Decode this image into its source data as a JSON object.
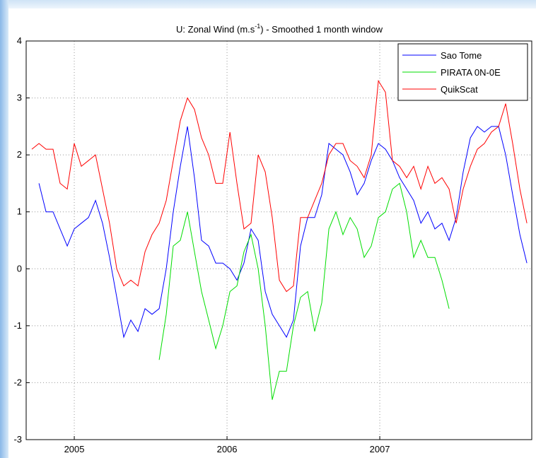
{
  "chart_data": {
    "type": "line",
    "title_parts": [
      "U: Zonal Wind (m.s",
      "-1",
      ") - Smoothed 1 month window"
    ],
    "x": [
      2004.722,
      2004.769,
      2004.815,
      2004.861,
      2004.907,
      2004.954,
      2005.0,
      2005.046,
      2005.093,
      2005.139,
      2005.185,
      2005.231,
      2005.278,
      2005.324,
      2005.37,
      2005.417,
      2005.463,
      2005.509,
      2005.556,
      2005.602,
      2005.648,
      2005.694,
      2005.741,
      2005.787,
      2005.833,
      2005.88,
      2005.926,
      2005.972,
      2006.019,
      2006.065,
      2006.111,
      2006.157,
      2006.204,
      2006.25,
      2006.296,
      2006.343,
      2006.389,
      2006.435,
      2006.481,
      2006.528,
      2006.574,
      2006.62,
      2006.667,
      2006.713,
      2006.759,
      2006.806,
      2006.852,
      2006.898,
      2006.944,
      2006.991,
      2007.037,
      2007.083,
      2007.13,
      2007.176,
      2007.222,
      2007.269,
      2007.315,
      2007.361,
      2007.407,
      2007.454,
      2007.5,
      2007.546,
      2007.593,
      2007.639,
      2007.685,
      2007.731,
      2007.778,
      2007.824,
      2007.87,
      2007.917,
      2007.963
    ],
    "series": [
      {
        "name": "Sao Tome",
        "color": "#0000ff",
        "values": [
          null,
          1.5,
          1.0,
          1.0,
          0.7,
          0.4,
          0.7,
          0.8,
          0.9,
          1.2,
          0.8,
          0.2,
          -0.5,
          -1.2,
          -0.9,
          -1.1,
          -0.7,
          -0.8,
          -0.7,
          0.0,
          1.0,
          1.8,
          2.5,
          1.6,
          0.5,
          0.4,
          0.1,
          0.1,
          0.0,
          -0.2,
          0.1,
          0.7,
          0.5,
          -0.4,
          -0.8,
          -1.0,
          -1.2,
          -0.9,
          0.4,
          0.9,
          0.9,
          1.3,
          2.2,
          2.1,
          2.0,
          1.7,
          1.3,
          1.5,
          1.9,
          2.2,
          2.1,
          1.9,
          1.6,
          1.4,
          1.2,
          0.8,
          1.0,
          0.7,
          0.8,
          0.5,
          0.9,
          1.7,
          2.3,
          2.5,
          2.4,
          2.5,
          2.5,
          2.0,
          1.3,
          0.6,
          0.1
        ]
      },
      {
        "name": "PIRATA 0N-0E",
        "color": "#00dd00",
        "values": [
          null,
          null,
          null,
          null,
          null,
          null,
          null,
          null,
          null,
          null,
          null,
          null,
          null,
          null,
          null,
          null,
          null,
          null,
          -1.6,
          -0.8,
          0.4,
          0.5,
          1.0,
          0.3,
          -0.4,
          -0.9,
          -1.4,
          -1.0,
          -0.4,
          -0.3,
          0.3,
          0.6,
          0.0,
          -1.0,
          -2.3,
          -1.8,
          -1.8,
          -1.0,
          -0.5,
          -0.4,
          -1.1,
          -0.6,
          0.7,
          1.0,
          0.6,
          0.9,
          0.7,
          0.2,
          0.4,
          0.9,
          1.0,
          1.4,
          1.5,
          1.0,
          0.2,
          0.5,
          0.2,
          0.2,
          -0.2,
          -0.7,
          null,
          null,
          null,
          null,
          null,
          null,
          null,
          null,
          null,
          null,
          null
        ]
      },
      {
        "name": "QuikScat",
        "color": "#ff0000",
        "values": [
          2.1,
          2.2,
          2.1,
          2.1,
          1.5,
          1.4,
          2.2,
          1.8,
          1.9,
          2.0,
          1.4,
          0.8,
          0.0,
          -0.3,
          -0.2,
          -0.3,
          0.3,
          0.6,
          0.8,
          1.2,
          1.9,
          2.6,
          3.0,
          2.8,
          2.3,
          2.0,
          1.5,
          1.5,
          2.4,
          1.5,
          0.7,
          0.8,
          2.0,
          1.7,
          0.9,
          -0.2,
          -0.4,
          -0.3,
          0.9,
          0.9,
          1.2,
          1.5,
          2.0,
          2.2,
          2.2,
          1.9,
          1.8,
          1.6,
          2.0,
          3.3,
          3.1,
          1.9,
          1.8,
          1.6,
          1.8,
          1.4,
          1.8,
          1.5,
          1.6,
          1.4,
          0.8,
          1.4,
          1.8,
          2.1,
          2.2,
          2.4,
          2.5,
          2.9,
          2.2,
          1.4,
          0.8
        ]
      }
    ],
    "xlim": [
      2004.685,
      2007.995
    ],
    "ylim": [
      -3,
      4
    ],
    "xticks": [
      2005,
      2006,
      2007
    ],
    "yticks": [
      -3,
      -2,
      -1,
      0,
      1,
      2,
      3,
      4
    ],
    "grid": true,
    "legend": "top-right"
  }
}
